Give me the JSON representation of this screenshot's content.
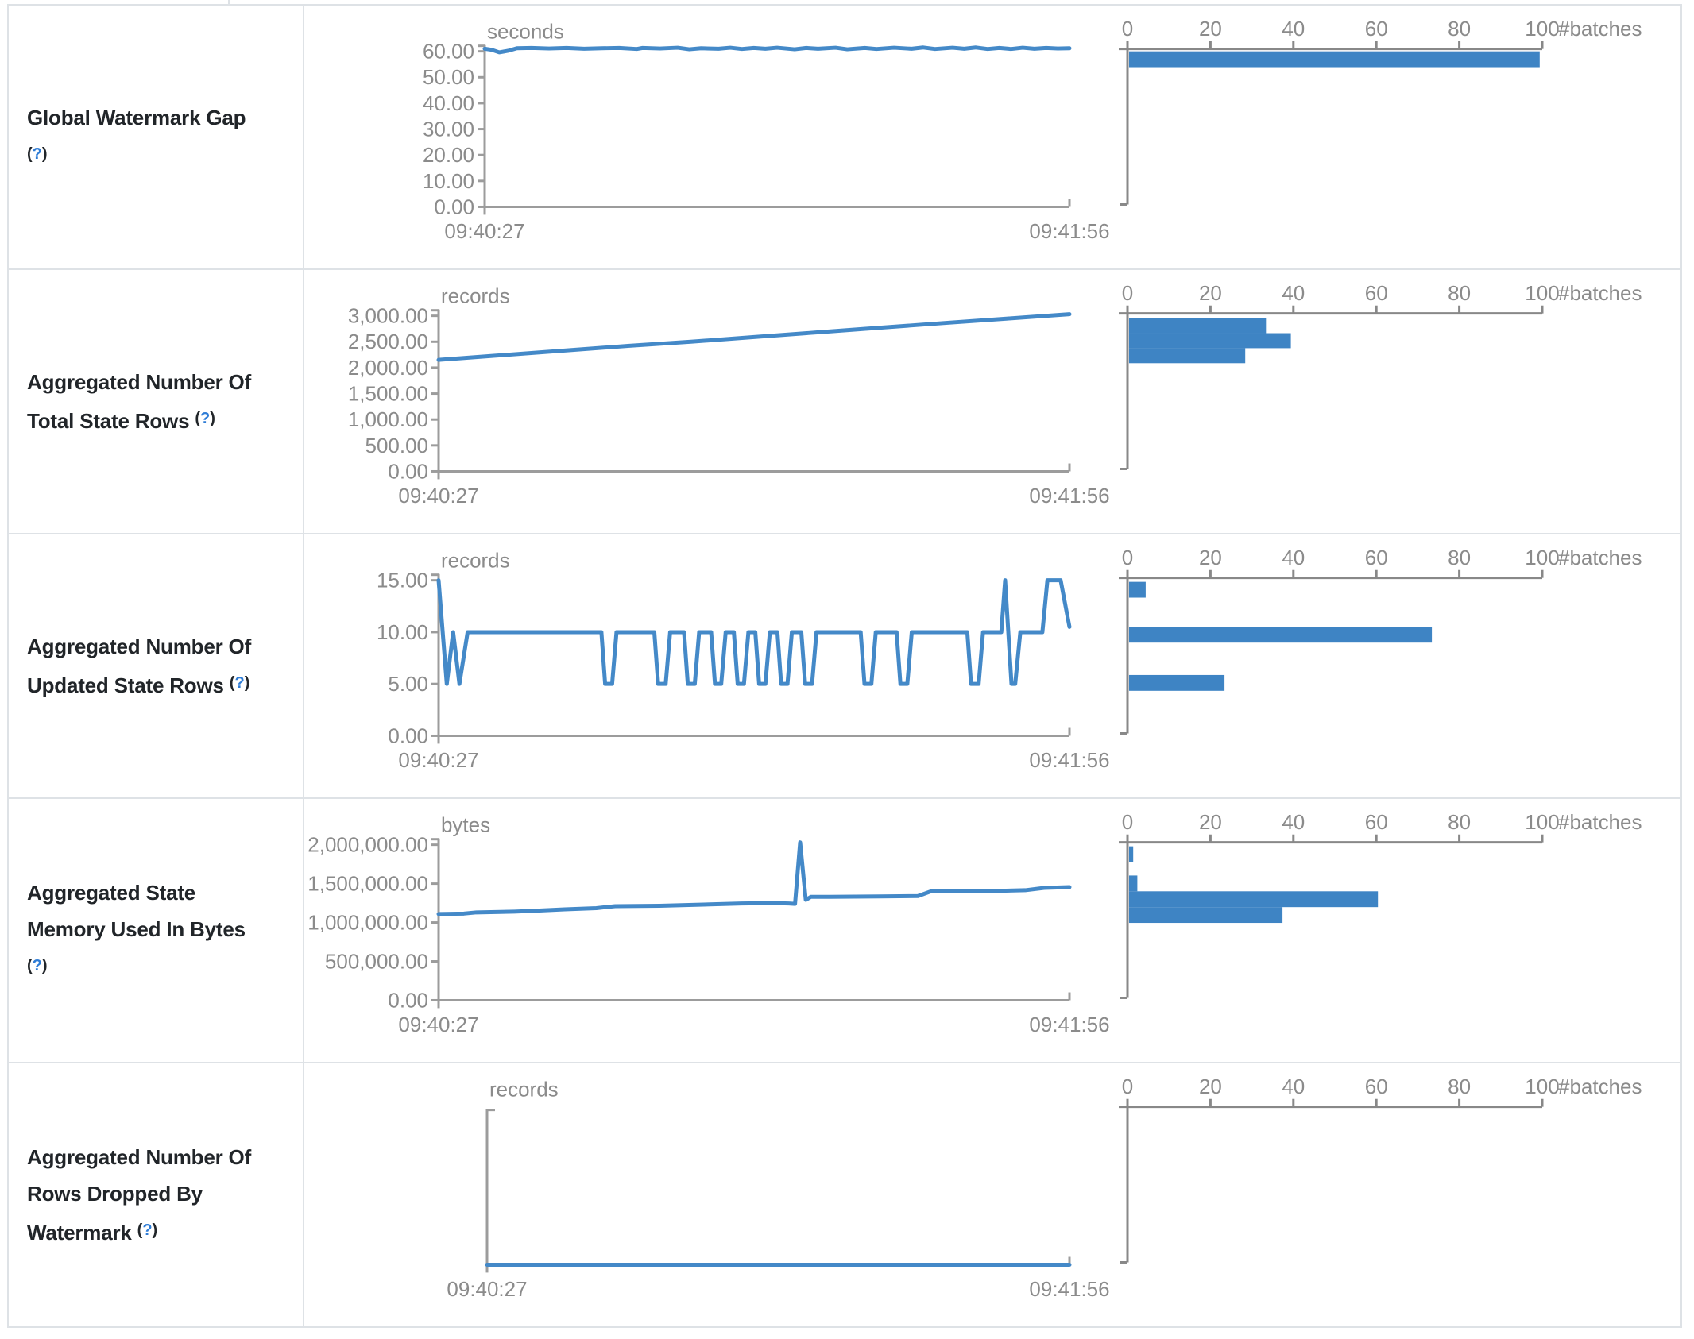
{
  "colors": {
    "line": "#4489c8",
    "bar": "#3e84c4",
    "timeline_axis": "#9c9c9c",
    "histogram_axis": "#888888",
    "chart_text": "#8b8b8b",
    "label_text": "#212529",
    "link": "#2e7cd6",
    "table_border": "#dee2e6",
    "background": "#ffffff"
  },
  "axis_labels": {
    "x_start": "09:40:27",
    "x_end": "09:41:56"
  },
  "histogram_axis": {
    "ticks": [
      "0",
      "20",
      "40",
      "60",
      "80",
      "100"
    ],
    "unit": "#batches"
  },
  "rows": [
    {
      "label_lines": [
        "Global Watermark Gap",
        "(?)"
      ],
      "unit": "seconds",
      "y_ticks": [
        "60.00",
        "50.00",
        "40.00",
        "30.00",
        "20.00",
        "10.00",
        "0.00"
      ]
    },
    {
      "label_lines": [
        "Aggregated Number Of",
        "Total State Rows (?)"
      ],
      "unit": "records",
      "y_ticks": [
        "3,000.00",
        "2,500.00",
        "2,000.00",
        "1,500.00",
        "1,000.00",
        "500.00",
        "0.00"
      ]
    },
    {
      "label_lines": [
        "Aggregated Number Of",
        "Updated State Rows (?)"
      ],
      "unit": "records",
      "y_ticks": [
        "15.00",
        "10.00",
        "5.00",
        "0.00"
      ]
    },
    {
      "label_lines": [
        "Aggregated State",
        "Memory Used In Bytes",
        "(?)"
      ],
      "unit": "bytes",
      "y_ticks": [
        "2,000,000.00",
        "1,500,000.00",
        "1,000,000.00",
        "500,000.00",
        "0.00"
      ]
    },
    {
      "label_lines": [
        "Aggregated Number Of",
        "Rows Dropped By",
        "Watermark (?)"
      ],
      "unit": "records",
      "y_ticks": []
    }
  ],
  "chart_data": [
    {
      "type": "line+histogram",
      "title": "Global Watermark Gap",
      "ylabel": "seconds",
      "x_range": [
        "09:40:27",
        "09:41:56"
      ],
      "y_ticks": [
        60,
        50,
        40,
        30,
        20,
        10,
        0
      ],
      "y_max": 60,
      "points": [
        [
          0,
          61.0
        ],
        [
          0.012,
          60.6
        ],
        [
          0.025,
          59.6
        ],
        [
          0.04,
          60.2
        ],
        [
          0.055,
          61.2
        ],
        [
          0.08,
          61.3
        ],
        [
          0.11,
          61.1
        ],
        [
          0.14,
          61.3
        ],
        [
          0.17,
          61.0
        ],
        [
          0.2,
          61.2
        ],
        [
          0.23,
          61.3
        ],
        [
          0.26,
          60.9
        ],
        [
          0.27,
          61.3
        ],
        [
          0.3,
          61.1
        ],
        [
          0.33,
          61.4
        ],
        [
          0.35,
          60.8
        ],
        [
          0.37,
          61.2
        ],
        [
          0.4,
          61.0
        ],
        [
          0.42,
          61.4
        ],
        [
          0.44,
          60.9
        ],
        [
          0.46,
          61.3
        ],
        [
          0.48,
          61.0
        ],
        [
          0.5,
          61.4
        ],
        [
          0.53,
          60.8
        ],
        [
          0.55,
          61.3
        ],
        [
          0.57,
          61.0
        ],
        [
          0.6,
          61.4
        ],
        [
          0.62,
          60.8
        ],
        [
          0.65,
          61.3
        ],
        [
          0.67,
          60.9
        ],
        [
          0.7,
          61.4
        ],
        [
          0.73,
          61.0
        ],
        [
          0.75,
          61.5
        ],
        [
          0.77,
          60.9
        ],
        [
          0.8,
          61.4
        ],
        [
          0.82,
          61.0
        ],
        [
          0.84,
          61.5
        ],
        [
          0.86,
          60.9
        ],
        [
          0.88,
          61.3
        ],
        [
          0.9,
          60.9
        ],
        [
          0.92,
          61.4
        ],
        [
          0.94,
          61.0
        ],
        [
          0.96,
          61.3
        ],
        [
          0.98,
          61.1
        ],
        [
          1.0,
          61.2
        ]
      ],
      "histogram": {
        "xlabel": "#batches",
        "ticks": [
          0,
          20,
          40,
          60,
          80,
          100
        ],
        "counts": [
          99
        ],
        "bin_values": [
          60
        ]
      }
    },
    {
      "type": "line+histogram",
      "title": "Aggregated Number Of Total State Rows",
      "ylabel": "records",
      "x_range": [
        "09:40:27",
        "09:41:56"
      ],
      "y_ticks": [
        3000,
        2500,
        2000,
        1500,
        1000,
        500,
        0
      ],
      "y_max": 3000,
      "points": [
        [
          0,
          2150
        ],
        [
          0.1,
          2240
        ],
        [
          0.2,
          2330
        ],
        [
          0.3,
          2420
        ],
        [
          0.4,
          2500
        ],
        [
          0.5,
          2590
        ],
        [
          0.6,
          2680
        ],
        [
          0.7,
          2770
        ],
        [
          0.8,
          2860
        ],
        [
          0.9,
          2945
        ],
        [
          1.0,
          3030
        ]
      ],
      "histogram": {
        "xlabel": "#batches",
        "ticks": [
          0,
          20,
          40,
          60,
          80,
          100
        ],
        "counts": [
          33,
          39,
          28
        ],
        "bin_values": [
          2850,
          2550,
          2250
        ]
      }
    },
    {
      "type": "line+histogram",
      "title": "Aggregated Number Of Updated State Rows",
      "ylabel": "records",
      "x_range": [
        "09:40:27",
        "09:41:56"
      ],
      "y_ticks": [
        15,
        10,
        5,
        0
      ],
      "y_max": 15,
      "points": [
        [
          0,
          15
        ],
        [
          0.013,
          5
        ],
        [
          0.023,
          10
        ],
        [
          0.033,
          5
        ],
        [
          0.046,
          10
        ],
        [
          0.258,
          10
        ],
        [
          0.264,
          5
        ],
        [
          0.275,
          5
        ],
        [
          0.282,
          10
        ],
        [
          0.342,
          10
        ],
        [
          0.348,
          5
        ],
        [
          0.36,
          5
        ],
        [
          0.367,
          10
        ],
        [
          0.389,
          10
        ],
        [
          0.395,
          5
        ],
        [
          0.406,
          5
        ],
        [
          0.413,
          10
        ],
        [
          0.432,
          10
        ],
        [
          0.438,
          5
        ],
        [
          0.448,
          5
        ],
        [
          0.455,
          10
        ],
        [
          0.468,
          10
        ],
        [
          0.474,
          5
        ],
        [
          0.484,
          5
        ],
        [
          0.491,
          10
        ],
        [
          0.502,
          10
        ],
        [
          0.508,
          5
        ],
        [
          0.518,
          5
        ],
        [
          0.525,
          10
        ],
        [
          0.537,
          10
        ],
        [
          0.543,
          5
        ],
        [
          0.553,
          5
        ],
        [
          0.56,
          10
        ],
        [
          0.575,
          10
        ],
        [
          0.581,
          5
        ],
        [
          0.592,
          5
        ],
        [
          0.599,
          10
        ],
        [
          0.669,
          10
        ],
        [
          0.675,
          5
        ],
        [
          0.686,
          5
        ],
        [
          0.693,
          10
        ],
        [
          0.726,
          10
        ],
        [
          0.732,
          5
        ],
        [
          0.743,
          5
        ],
        [
          0.75,
          10
        ],
        [
          0.838,
          10
        ],
        [
          0.844,
          5
        ],
        [
          0.856,
          5
        ],
        [
          0.863,
          10
        ],
        [
          0.892,
          10
        ],
        [
          0.898,
          15
        ],
        [
          0.908,
          5
        ],
        [
          0.914,
          5
        ],
        [
          0.922,
          10
        ],
        [
          0.957,
          10
        ],
        [
          0.965,
          15
        ],
        [
          0.986,
          15
        ],
        [
          1,
          10.5
        ]
      ],
      "histogram": {
        "xlabel": "#batches",
        "ticks": [
          0,
          20,
          40,
          60,
          80,
          100
        ],
        "counts": [
          4,
          73,
          23
        ],
        "bin_values": [
          15,
          10,
          5
        ]
      }
    },
    {
      "type": "line+histogram",
      "title": "Aggregated State Memory Used In Bytes",
      "ylabel": "bytes",
      "x_range": [
        "09:40:27",
        "09:41:56"
      ],
      "y_ticks": [
        2000000,
        1500000,
        1000000,
        500000,
        0
      ],
      "y_max": 2000000,
      "points": [
        [
          0,
          1110000
        ],
        [
          0.04,
          1115000
        ],
        [
          0.06,
          1130000
        ],
        [
          0.12,
          1140000
        ],
        [
          0.15,
          1150000
        ],
        [
          0.2,
          1170000
        ],
        [
          0.25,
          1185000
        ],
        [
          0.28,
          1210000
        ],
        [
          0.35,
          1215000
        ],
        [
          0.42,
          1230000
        ],
        [
          0.48,
          1245000
        ],
        [
          0.53,
          1250000
        ],
        [
          0.555,
          1245000
        ],
        [
          0.565,
          1240000
        ],
        [
          0.573,
          2030000
        ],
        [
          0.582,
          1290000
        ],
        [
          0.59,
          1330000
        ],
        [
          0.62,
          1330000
        ],
        [
          0.7,
          1335000
        ],
        [
          0.76,
          1340000
        ],
        [
          0.78,
          1400000
        ],
        [
          0.88,
          1405000
        ],
        [
          0.93,
          1415000
        ],
        [
          0.96,
          1445000
        ],
        [
          1.0,
          1455000
        ]
      ],
      "histogram": {
        "xlabel": "#batches",
        "ticks": [
          0,
          20,
          40,
          60,
          80,
          100
        ],
        "counts": [
          1,
          2,
          60,
          37
        ],
        "bin_values": [
          1900000,
          1500000,
          1300000,
          1100000
        ]
      }
    },
    {
      "type": "line+histogram",
      "title": "Aggregated Number Of Rows Dropped By Watermark",
      "ylabel": "records",
      "x_range": [
        "09:40:27",
        "09:41:56"
      ],
      "y_ticks": [],
      "y_max": null,
      "points": [
        [
          0,
          0
        ],
        [
          1,
          0
        ]
      ],
      "histogram": {
        "xlabel": "#batches",
        "ticks": [
          0,
          20,
          40,
          60,
          80,
          100
        ],
        "counts": [],
        "bin_values": []
      }
    }
  ]
}
